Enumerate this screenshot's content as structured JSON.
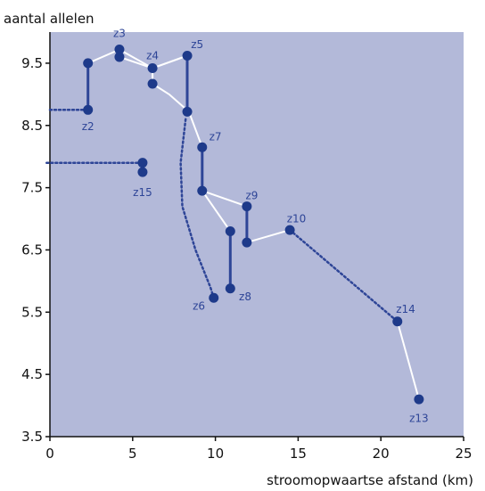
{
  "chart_data": {
    "type": "scatter",
    "title": "",
    "ylabel": "aantal allelen",
    "xlabel": "stroomopwaartse afstand (km)",
    "xlim": [
      0,
      25
    ],
    "ylim": [
      3.5,
      10
    ],
    "xticks": [
      0,
      5,
      10,
      15,
      20,
      25
    ],
    "xtick_labels": [
      "0",
      "5",
      "10",
      "15",
      "20",
      "25"
    ],
    "yticks": [
      3.5,
      4.5,
      5.5,
      6.5,
      7.5,
      8.5,
      9.5
    ],
    "ytick_labels": [
      "3.5",
      "4.5",
      "5.5",
      "6.5",
      "7.5",
      "8.5",
      "9.5"
    ],
    "grid": false,
    "colors": {
      "plot_background": "#b3b9d9",
      "marker": "#1e3a8a",
      "site_label": "#2e4597",
      "white_line": "#ffffff",
      "dark_line": "#2e4597"
    },
    "points": [
      {
        "id": "p1",
        "x": 2.3,
        "y": 9.5
      },
      {
        "id": "p2",
        "x": 2.3,
        "y": 8.75
      },
      {
        "id": "p3",
        "x": 4.2,
        "y": 9.72
      },
      {
        "id": "p4",
        "x": 4.2,
        "y": 9.6
      },
      {
        "id": "p5",
        "x": 6.2,
        "y": 9.42
      },
      {
        "id": "p6",
        "x": 6.2,
        "y": 9.17
      },
      {
        "id": "p7",
        "x": 8.3,
        "y": 9.62
      },
      {
        "id": "p8",
        "x": 8.3,
        "y": 8.72
      },
      {
        "id": "p9",
        "x": 5.6,
        "y": 7.9
      },
      {
        "id": "p10",
        "x": 5.6,
        "y": 7.75
      },
      {
        "id": "p11",
        "x": 9.2,
        "y": 8.15
      },
      {
        "id": "p12",
        "x": 9.2,
        "y": 7.45
      },
      {
        "id": "p13",
        "x": 11.9,
        "y": 7.2
      },
      {
        "id": "p14",
        "x": 11.9,
        "y": 6.62
      },
      {
        "id": "p15",
        "x": 10.9,
        "y": 6.8
      },
      {
        "id": "p16",
        "x": 10.9,
        "y": 5.88
      },
      {
        "id": "p17",
        "x": 9.9,
        "y": 5.73
      },
      {
        "id": "p18",
        "x": 14.5,
        "y": 6.82
      },
      {
        "id": "p19",
        "x": 21.0,
        "y": 5.35
      },
      {
        "id": "p20",
        "x": 22.3,
        "y": 4.1
      }
    ],
    "white_path": [
      [
        2.3,
        9.5
      ],
      [
        4.2,
        9.72
      ],
      [
        4.2,
        9.6
      ],
      [
        6.2,
        9.42
      ],
      [
        6.2,
        9.17
      ],
      [
        7.2,
        9.0
      ],
      [
        8.4,
        8.72
      ],
      [
        9.2,
        8.15
      ],
      [
        9.2,
        7.45
      ],
      [
        11.9,
        7.2
      ],
      [
        11.9,
        6.62
      ],
      [
        14.5,
        6.82
      ]
    ],
    "white_path_2": [
      [
        4.2,
        9.72
      ],
      [
        6.2,
        9.42
      ],
      [
        8.3,
        9.62
      ]
    ],
    "white_path_3": [
      [
        9.2,
        7.45
      ],
      [
        10.9,
        6.8
      ]
    ],
    "white_path_4": [
      [
        21.0,
        5.35
      ],
      [
        22.3,
        4.1
      ]
    ],
    "vertical_links": [
      [
        [
          2.3,
          9.5
        ],
        [
          2.3,
          8.75
        ]
      ],
      [
        [
          8.3,
          9.62
        ],
        [
          8.3,
          8.72
        ]
      ],
      [
        [
          9.2,
          8.15
        ],
        [
          9.2,
          7.45
        ]
      ],
      [
        [
          11.9,
          7.2
        ],
        [
          11.9,
          6.62
        ]
      ],
      [
        [
          10.9,
          6.8
        ],
        [
          10.9,
          5.88
        ]
      ]
    ],
    "dotted_lines": [
      [
        [
          0,
          8.75
        ],
        [
          2.0,
          8.75
        ]
      ],
      [
        [
          -0.2,
          7.9
        ],
        [
          5.4,
          7.9
        ]
      ],
      [
        [
          14.5,
          6.82
        ],
        [
          21.0,
          5.35
        ]
      ]
    ],
    "dotted_curve": [
      [
        8.2,
        8.6
      ],
      [
        7.9,
        7.9
      ],
      [
        8.0,
        7.2
      ],
      [
        8.8,
        6.5
      ],
      [
        9.7,
        5.9
      ],
      [
        9.9,
        5.73
      ]
    ],
    "labels": [
      {
        "text": "z2",
        "x": 2.3,
        "y": 8.48
      },
      {
        "text": "z3",
        "x": 4.2,
        "y": 9.98
      },
      {
        "text": "z4",
        "x": 6.2,
        "y": 9.62
      },
      {
        "text": "z5",
        "x": 8.9,
        "y": 9.8
      },
      {
        "text": "z7",
        "x": 10.0,
        "y": 8.32
      },
      {
        "text": "z15",
        "x": 5.6,
        "y": 7.42
      },
      {
        "text": "z9",
        "x": 12.2,
        "y": 7.37
      },
      {
        "text": "z10",
        "x": 14.9,
        "y": 7.0
      },
      {
        "text": "z8",
        "x": 11.8,
        "y": 5.75
      },
      {
        "text": "z6",
        "x": 9.0,
        "y": 5.6
      },
      {
        "text": "z14",
        "x": 21.5,
        "y": 5.55
      },
      {
        "text": "z13",
        "x": 22.3,
        "y": 3.79
      }
    ]
  }
}
